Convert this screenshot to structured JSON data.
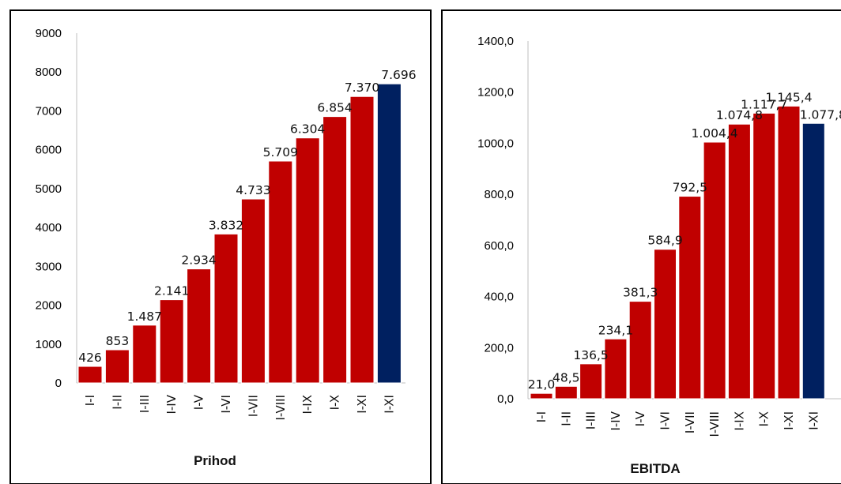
{
  "chart_data": [
    {
      "type": "bar",
      "title": "",
      "xlabel": "Prihod",
      "ylabel": "",
      "ylim": [
        0,
        9000
      ],
      "yticks": [
        "0",
        "1000",
        "2000",
        "3000",
        "4000",
        "5000",
        "6000",
        "7000",
        "8000",
        "9000"
      ],
      "categories": [
        "I-I",
        "I-II",
        "I-III",
        "I-IV",
        "I-V",
        "I-VI",
        "I-VII",
        "I-VIII",
        "I-IX",
        "I-X",
        "I-XI",
        "I-XI"
      ],
      "values": [
        426,
        853,
        1487,
        2141,
        2934,
        3832,
        4733,
        5709,
        6304,
        6854,
        7370,
        7696
      ],
      "value_labels": [
        "426",
        "853",
        "1.487",
        "2.141",
        "2.934",
        "3.832",
        "4.733",
        "5.709",
        "6.304",
        "6.854",
        "7.370",
        "7.696"
      ],
      "colors": [
        "#c00000",
        "#c00000",
        "#c00000",
        "#c00000",
        "#c00000",
        "#c00000",
        "#c00000",
        "#c00000",
        "#c00000",
        "#c00000",
        "#c00000",
        "#002060"
      ],
      "grid": false
    },
    {
      "type": "bar",
      "title": "",
      "xlabel": "EBITDA",
      "ylabel": "",
      "ylim": [
        0,
        1400
      ],
      "yticks": [
        "0,0",
        "200,0",
        "400,0",
        "600,0",
        "800,0",
        "1000,0",
        "1200,0",
        "1400,0"
      ],
      "categories": [
        "I-I",
        "I-II",
        "I-III",
        "I-IV",
        "I-V",
        "I-VI",
        "I-VII",
        "I-VIII",
        "I-IX",
        "I-X",
        "I-XI",
        "I-XI"
      ],
      "values": [
        21.0,
        48.5,
        136.5,
        234.1,
        381.3,
        584.9,
        792.5,
        1004.4,
        1074.8,
        1117.7,
        1145.4,
        1077.8
      ],
      "value_labels": [
        "21,0",
        "48,5",
        "136,5",
        "234,1",
        "381,3",
        "584,9",
        "792,5",
        "1.004,4",
        "1.074,8",
        "1.117,7",
        "1.145,4",
        "1.077,8"
      ],
      "colors": [
        "#c00000",
        "#c00000",
        "#c00000",
        "#c00000",
        "#c00000",
        "#c00000",
        "#c00000",
        "#c00000",
        "#c00000",
        "#c00000",
        "#c00000",
        "#002060"
      ],
      "grid": false
    }
  ]
}
